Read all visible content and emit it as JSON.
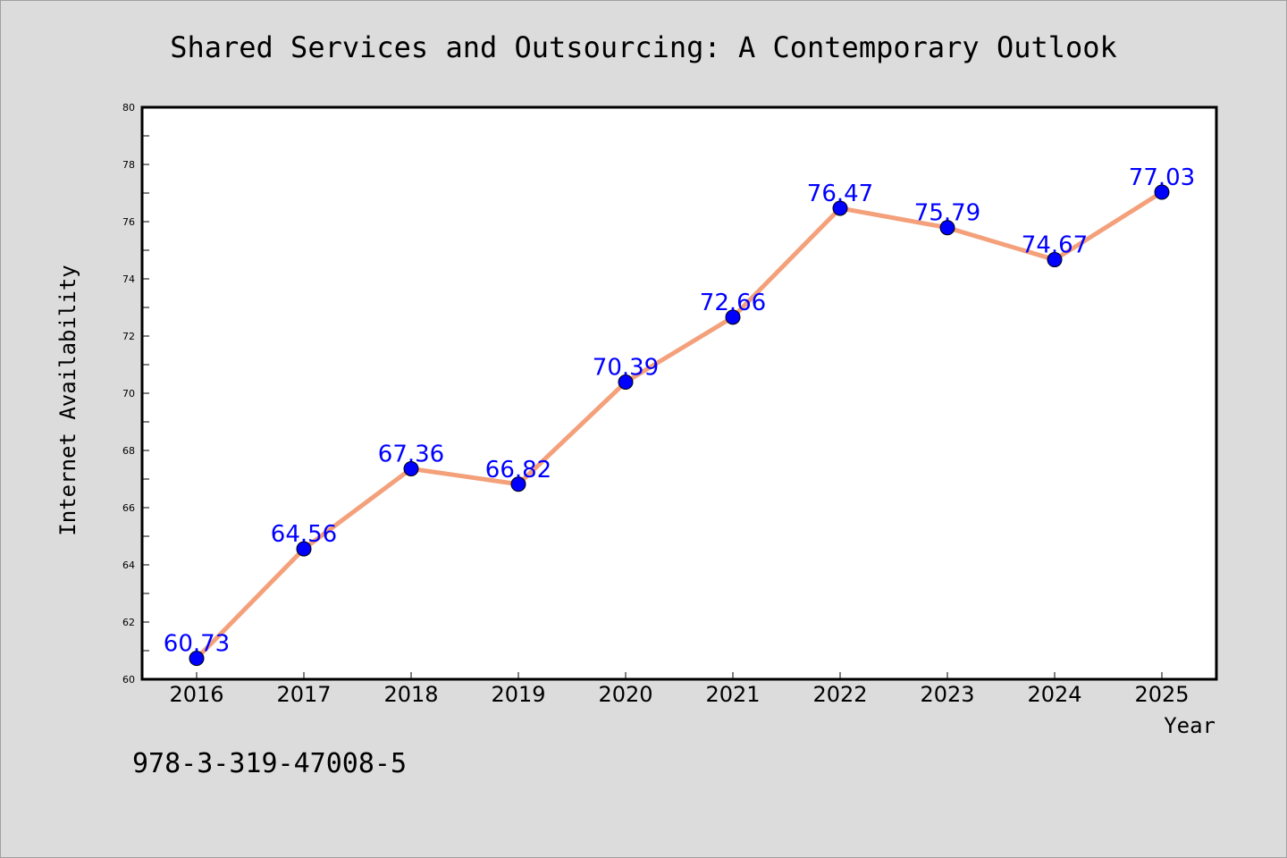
{
  "chart_data": {
    "type": "line",
    "title": "Shared Services and Outsourcing: A Contemporary Outlook",
    "xlabel": "Year",
    "ylabel": "Internet Availability",
    "categories": [
      "2016",
      "2017",
      "2018",
      "2019",
      "2020",
      "2021",
      "2022",
      "2023",
      "2024",
      "2025"
    ],
    "series": [
      {
        "values": [
          60.73,
          64.56,
          67.36,
          66.82,
          70.39,
          72.66,
          76.47,
          75.79,
          74.67,
          77.03
        ]
      }
    ],
    "data_labels": [
      "60.73",
      "64.56",
      "67.36",
      "66.82",
      "70.39",
      "72.66",
      "76.47",
      "75.79",
      "74.67",
      "77.03"
    ],
    "ylim": [
      60,
      80
    ],
    "yticks": [
      "60",
      "62",
      "64",
      "66",
      "68",
      "70",
      "72",
      "74",
      "76",
      "78",
      "80"
    ],
    "grid": false,
    "line_color": "#f4a07a",
    "marker_color": "#0000ff",
    "label_color": "#0000ff"
  },
  "footer": {
    "isbn": "978-3-319-47008-5"
  }
}
